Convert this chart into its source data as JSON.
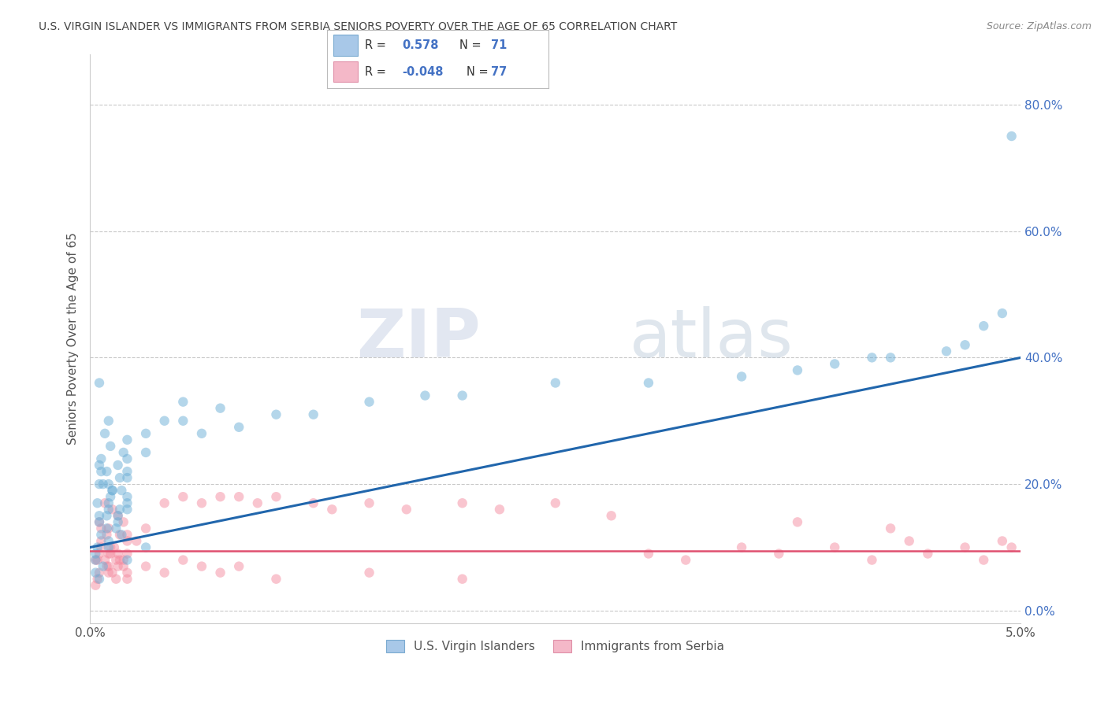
{
  "title": "U.S. VIRGIN ISLANDER VS IMMIGRANTS FROM SERBIA SENIORS POVERTY OVER THE AGE OF 65 CORRELATION CHART",
  "source": "Source: ZipAtlas.com",
  "ylabel": "Seniors Poverty Over the Age of 65",
  "xlim": [
    0.0,
    0.05
  ],
  "ylim": [
    -0.02,
    0.88
  ],
  "yticks": [
    0.0,
    0.2,
    0.4,
    0.6,
    0.8
  ],
  "ytick_labels": [
    "0.0%",
    "20.0%",
    "40.0%",
    "60.0%",
    "80.0%"
  ],
  "xticks": [
    0.0,
    0.05
  ],
  "xtick_labels": [
    "0.0%",
    "5.0%"
  ],
  "legend_labels_bottom": [
    "U.S. Virgin Islanders",
    "Immigrants from Serbia"
  ],
  "blue_color": "#6baed6",
  "pink_color": "#f48ca0",
  "blue_line_color": "#2166ac",
  "pink_line_color": "#e05070",
  "watermark_zip": "ZIP",
  "watermark_atlas": "atlas",
  "background_color": "#ffffff",
  "grid_color": "#bbbbbb",
  "title_color": "#444444",
  "blue_scatter": [
    [
      0.0005,
      0.2
    ],
    [
      0.0008,
      0.28
    ],
    [
      0.001,
      0.17
    ],
    [
      0.0012,
      0.19
    ],
    [
      0.0005,
      0.15
    ],
    [
      0.0009,
      0.22
    ],
    [
      0.0015,
      0.14
    ],
    [
      0.0006,
      0.12
    ],
    [
      0.001,
      0.16
    ],
    [
      0.0007,
      0.2
    ],
    [
      0.0015,
      0.23
    ],
    [
      0.002,
      0.21
    ],
    [
      0.0004,
      0.1
    ],
    [
      0.0009,
      0.13
    ],
    [
      0.0018,
      0.25
    ],
    [
      0.0003,
      0.08
    ],
    [
      0.0011,
      0.18
    ],
    [
      0.0006,
      0.24
    ],
    [
      0.0016,
      0.16
    ],
    [
      0.002,
      0.22
    ],
    [
      0.0005,
      0.14
    ],
    [
      0.001,
      0.11
    ],
    [
      0.0017,
      0.19
    ],
    [
      0.0004,
      0.17
    ],
    [
      0.0009,
      0.15
    ],
    [
      0.0014,
      0.13
    ],
    [
      0.002,
      0.24
    ],
    [
      0.0003,
      0.09
    ],
    [
      0.001,
      0.2
    ],
    [
      0.0015,
      0.15
    ],
    [
      0.002,
      0.18
    ],
    [
      0.0011,
      0.26
    ],
    [
      0.0016,
      0.21
    ],
    [
      0.002,
      0.16
    ],
    [
      0.0006,
      0.22
    ],
    [
      0.0012,
      0.19
    ],
    [
      0.0017,
      0.12
    ],
    [
      0.002,
      0.17
    ],
    [
      0.0005,
      0.23
    ],
    [
      0.001,
      0.1
    ],
    [
      0.003,
      0.28
    ],
    [
      0.004,
      0.3
    ],
    [
      0.005,
      0.33
    ],
    [
      0.007,
      0.32
    ],
    [
      0.0005,
      0.36
    ],
    [
      0.001,
      0.3
    ],
    [
      0.002,
      0.27
    ],
    [
      0.003,
      0.25
    ],
    [
      0.005,
      0.3
    ],
    [
      0.006,
      0.28
    ],
    [
      0.008,
      0.29
    ],
    [
      0.01,
      0.31
    ],
    [
      0.012,
      0.31
    ],
    [
      0.015,
      0.33
    ],
    [
      0.018,
      0.34
    ],
    [
      0.02,
      0.34
    ],
    [
      0.025,
      0.36
    ],
    [
      0.03,
      0.36
    ],
    [
      0.035,
      0.37
    ],
    [
      0.038,
      0.38
    ],
    [
      0.04,
      0.39
    ],
    [
      0.042,
      0.4
    ],
    [
      0.043,
      0.4
    ],
    [
      0.046,
      0.41
    ],
    [
      0.047,
      0.42
    ],
    [
      0.048,
      0.45
    ],
    [
      0.049,
      0.47
    ],
    [
      0.0495,
      0.75
    ],
    [
      0.0005,
      0.05
    ],
    [
      0.0007,
      0.07
    ],
    [
      0.0003,
      0.06
    ],
    [
      0.002,
      0.08
    ],
    [
      0.003,
      0.1
    ]
  ],
  "pink_scatter": [
    [
      0.0003,
      0.08
    ],
    [
      0.0006,
      0.11
    ],
    [
      0.001,
      0.07
    ],
    [
      0.0013,
      0.1
    ],
    [
      0.0004,
      0.05
    ],
    [
      0.0008,
      0.08
    ],
    [
      0.0012,
      0.06
    ],
    [
      0.0005,
      0.09
    ],
    [
      0.0009,
      0.12
    ],
    [
      0.0014,
      0.08
    ],
    [
      0.0018,
      0.07
    ],
    [
      0.0003,
      0.04
    ],
    [
      0.0011,
      0.1
    ],
    [
      0.0016,
      0.08
    ],
    [
      0.002,
      0.05
    ],
    [
      0.0006,
      0.13
    ],
    [
      0.001,
      0.06
    ],
    [
      0.0015,
      0.09
    ],
    [
      0.002,
      0.11
    ],
    [
      0.0004,
      0.08
    ],
    [
      0.0009,
      0.07
    ],
    [
      0.0016,
      0.12
    ],
    [
      0.002,
      0.09
    ],
    [
      0.0005,
      0.06
    ],
    [
      0.001,
      0.09
    ],
    [
      0.0014,
      0.05
    ],
    [
      0.0018,
      0.08
    ],
    [
      0.0006,
      0.1
    ],
    [
      0.0011,
      0.09
    ],
    [
      0.0015,
      0.07
    ],
    [
      0.002,
      0.06
    ],
    [
      0.0005,
      0.14
    ],
    [
      0.001,
      0.13
    ],
    [
      0.0015,
      0.15
    ],
    [
      0.0008,
      0.17
    ],
    [
      0.0012,
      0.16
    ],
    [
      0.0018,
      0.14
    ],
    [
      0.002,
      0.12
    ],
    [
      0.0025,
      0.11
    ],
    [
      0.003,
      0.13
    ],
    [
      0.004,
      0.17
    ],
    [
      0.005,
      0.18
    ],
    [
      0.006,
      0.17
    ],
    [
      0.007,
      0.18
    ],
    [
      0.008,
      0.18
    ],
    [
      0.009,
      0.17
    ],
    [
      0.01,
      0.18
    ],
    [
      0.012,
      0.17
    ],
    [
      0.013,
      0.16
    ],
    [
      0.015,
      0.17
    ],
    [
      0.017,
      0.16
    ],
    [
      0.02,
      0.17
    ],
    [
      0.022,
      0.16
    ],
    [
      0.025,
      0.17
    ],
    [
      0.028,
      0.15
    ],
    [
      0.03,
      0.09
    ],
    [
      0.032,
      0.08
    ],
    [
      0.035,
      0.1
    ],
    [
      0.037,
      0.09
    ],
    [
      0.04,
      0.1
    ],
    [
      0.042,
      0.08
    ],
    [
      0.044,
      0.11
    ],
    [
      0.045,
      0.09
    ],
    [
      0.047,
      0.1
    ],
    [
      0.048,
      0.08
    ],
    [
      0.049,
      0.11
    ],
    [
      0.0495,
      0.1
    ],
    [
      0.003,
      0.07
    ],
    [
      0.004,
      0.06
    ],
    [
      0.005,
      0.08
    ],
    [
      0.006,
      0.07
    ],
    [
      0.007,
      0.06
    ],
    [
      0.008,
      0.07
    ],
    [
      0.01,
      0.05
    ],
    [
      0.015,
      0.06
    ],
    [
      0.02,
      0.05
    ],
    [
      0.038,
      0.14
    ],
    [
      0.043,
      0.13
    ]
  ]
}
